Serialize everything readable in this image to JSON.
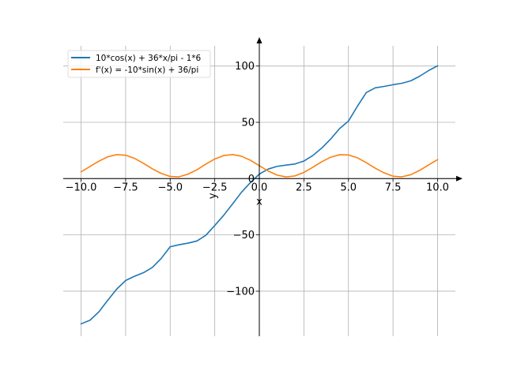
{
  "chart_data": {
    "type": "line",
    "title": "",
    "xlabel": "x",
    "ylabel": "y",
    "xlim": [
      -11,
      11
    ],
    "ylim": [
      -140,
      118
    ],
    "grid": true,
    "legend_position": "top-left",
    "xticks": [
      -10.0,
      -7.5,
      -5.0,
      -2.5,
      0.0,
      2.5,
      5.0,
      7.5,
      10.0
    ],
    "xtick_labels": [
      "−10.0",
      "−7.5",
      "−5.0",
      "−2.5",
      "0.0",
      "2.5",
      "5.0",
      "7.5",
      "10.0"
    ],
    "yticks": [
      -100,
      -50,
      0,
      50,
      100
    ],
    "ytick_labels": [
      "−100",
      "−50",
      "0",
      "50",
      "100"
    ],
    "series": [
      {
        "name": "10*cos(x) + 36*x/pi - 1*6",
        "color": "#1f77b4",
        "x": [
          -10.0,
          -9.5,
          -9.0,
          -8.5,
          -8.0,
          -7.5,
          -7.0,
          -6.5,
          -6.0,
          -5.5,
          -5.0,
          -4.5,
          -4.0,
          -3.5,
          -3.0,
          -2.5,
          -2.0,
          -1.5,
          -1.0,
          -0.5,
          0.0,
          0.5,
          1.0,
          1.5,
          2.0,
          2.5,
          3.0,
          3.5,
          4.0,
          4.5,
          5.0,
          5.5,
          6.0,
          6.5,
          7.0,
          7.5,
          8.0,
          8.5,
          9.0,
          9.5,
          10.0
        ],
        "y": [
          -129.0,
          -125.8,
          -118.3,
          -108.0,
          -98.1,
          -90.5,
          -86.7,
          -83.6,
          -78.9,
          -70.8,
          -60.5,
          -58.7,
          -57.3,
          -55.4,
          -50.3,
          -41.6,
          -32.6,
          -22.5,
          -12.1,
          -3.5,
          4.0,
          8.5,
          10.9,
          12.0,
          13.0,
          15.6,
          20.5,
          27.1,
          35.1,
          44.4,
          51.1,
          64.2,
          76.4,
          80.6,
          81.9,
          83.4,
          84.7,
          86.9,
          91.0,
          96.0,
          100.2
        ]
      },
      {
        "name": "f'(x) = -10*sin(x) + 36/pi",
        "color": "#ff7f0e",
        "x": [
          -10.0,
          -9.5,
          -9.0,
          -8.5,
          -8.0,
          -7.5,
          -7.0,
          -6.5,
          -6.0,
          -5.5,
          -5.0,
          -4.5,
          -4.0,
          -3.5,
          -3.0,
          -2.5,
          -2.0,
          -1.5,
          -1.0,
          -0.5,
          0.0,
          0.5,
          1.0,
          1.5,
          2.0,
          2.5,
          3.0,
          3.5,
          4.0,
          4.5,
          5.0,
          5.5,
          6.0,
          6.5,
          7.0,
          7.5,
          8.0,
          8.5,
          9.0,
          9.5,
          10.0
        ],
        "y": [
          6.0,
          10.8,
          15.5,
          19.4,
          21.3,
          20.8,
          18.0,
          13.6,
          8.7,
          4.6,
          1.9,
          1.6,
          4.0,
          7.9,
          12.9,
          17.4,
          20.5,
          21.4,
          19.9,
          16.3,
          11.5,
          6.7,
          3.1,
          1.5,
          2.4,
          5.5,
          10.1,
          15.0,
          19.0,
          21.2,
          21.0,
          18.5,
          14.2,
          9.3,
          5.1,
          2.1,
          1.6,
          3.5,
          7.4,
          12.2,
          16.9
        ]
      }
    ]
  }
}
